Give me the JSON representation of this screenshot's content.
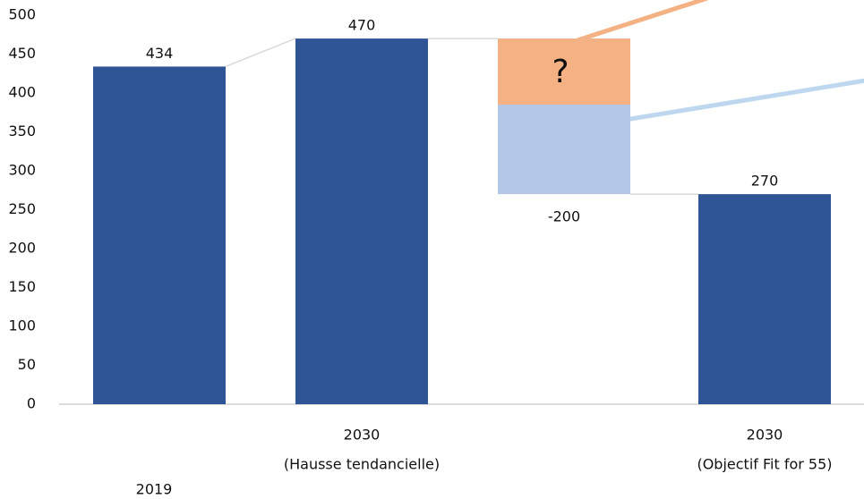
{
  "chart_data": {
    "type": "waterfall",
    "categories": [
      [
        "2019"
      ],
      [
        "2030",
        "(Hausse tendancielle)"
      ],
      null,
      [
        "2030",
        "(Objectif Fit for 55)"
      ]
    ],
    "values": [
      434,
      470,
      -200,
      270
    ],
    "measures": [
      "total",
      "total",
      "relative",
      "total"
    ],
    "colors": [
      "#2f5597",
      "#2f5597",
      "#b4c7e7",
      "#2f5597"
    ],
    "annotation": {
      "text": "?",
      "value": 85,
      "color": "#f4b183"
    },
    "ylim": [
      0,
      500
    ],
    "yticks": [
      0,
      50,
      100,
      150,
      200,
      250,
      300,
      350,
      400,
      450,
      500
    ]
  }
}
